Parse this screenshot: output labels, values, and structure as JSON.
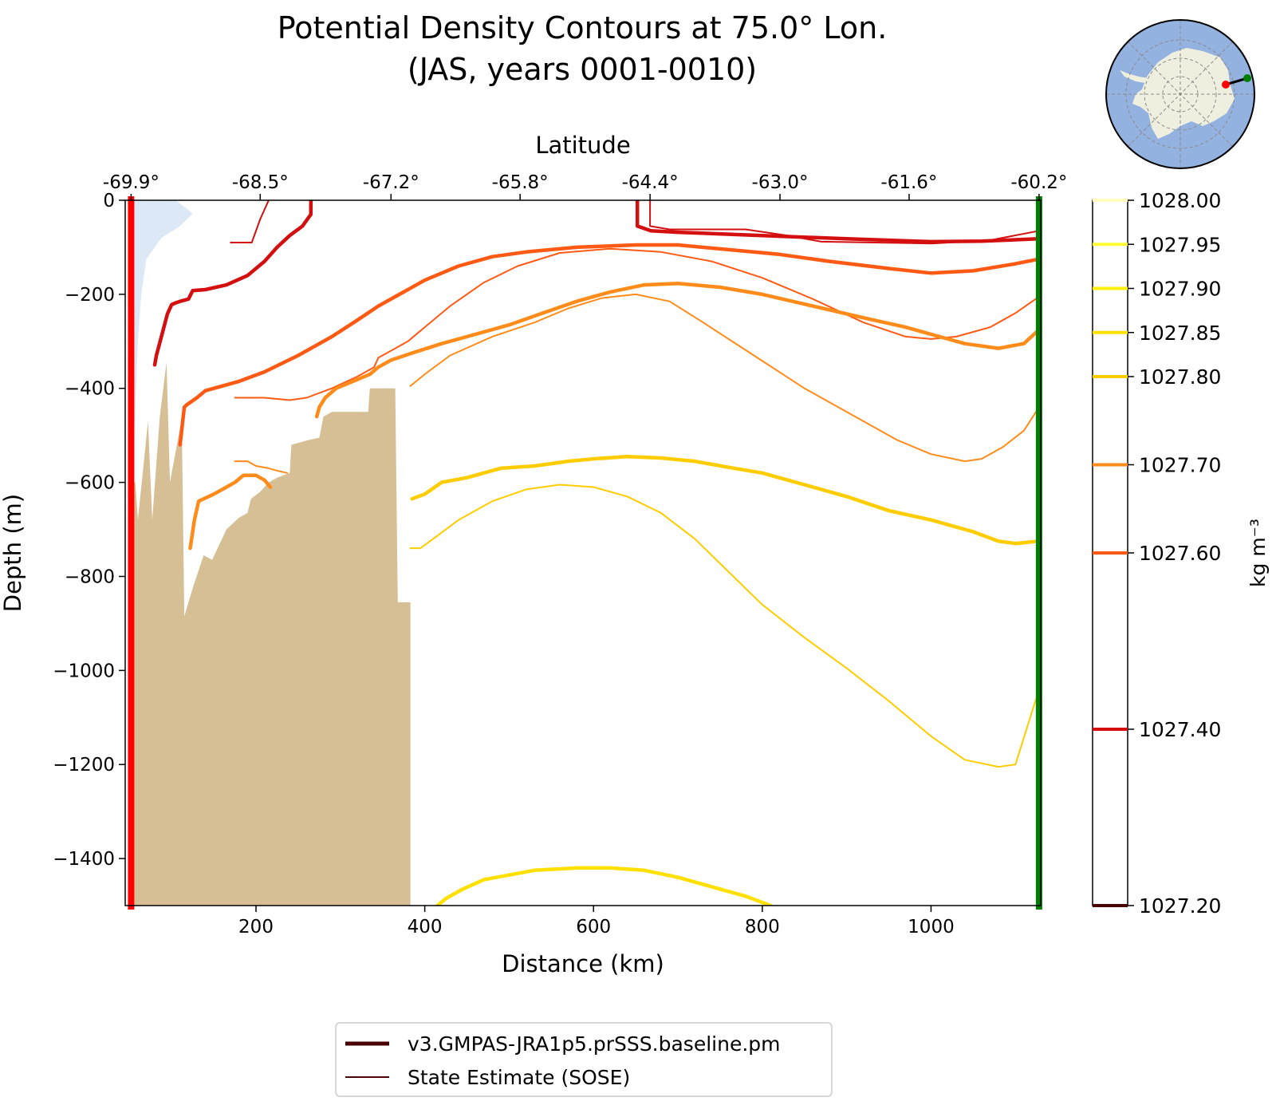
{
  "figure": {
    "title_line1": "Potential Density Contours at 75.0° Lon.",
    "title_line2": "(JAS, years 0001-0010)"
  },
  "chart_data": {
    "type": "line",
    "title": "Potential Density Contours at 75.0° Lon. (JAS, years 0001-0010)",
    "xlabel": "Distance (km)",
    "ylabel": "Depth (m)",
    "top_xlabel": "Latitude",
    "xlim": [
      45,
      1130
    ],
    "ylim": [
      -1500,
      0
    ],
    "x_ticks": [
      200,
      400,
      600,
      800,
      1000
    ],
    "y_ticks": [
      0,
      -200,
      -400,
      -600,
      -800,
      -1000,
      -1200,
      -1400
    ],
    "x_tick_labels": [
      "200",
      "400",
      "600",
      "800",
      "1000"
    ],
    "y_tick_labels": [
      "0",
      "−200",
      "−400",
      "−600",
      "−800",
      "−1000",
      "−1200",
      "−1400"
    ],
    "top_ticks": [
      {
        "x": 52,
        "label": "-69.9°"
      },
      {
        "x": 205,
        "label": "-68.5°"
      },
      {
        "x": 360,
        "label": "-67.2°"
      },
      {
        "x": 513,
        "label": "-65.8°"
      },
      {
        "x": 667,
        "label": "-64.4°"
      },
      {
        "x": 821,
        "label": "-63.0°"
      },
      {
        "x": 974,
        "label": "-61.6°"
      },
      {
        "x": 1128,
        "label": "-60.2°"
      }
    ],
    "section_start_x": 52,
    "section_end_x": 1128,
    "section_start_color": "#ff0000",
    "section_end_color": "#007f00",
    "ice_shelf_color": "#dce8f5",
    "bathymetry_color": "#d6bf94",
    "ice_shelf": [
      [
        58,
        0
      ],
      [
        105,
        0
      ],
      [
        125,
        -28
      ],
      [
        110,
        -55
      ],
      [
        88,
        -80
      ],
      [
        70,
        -125
      ],
      [
        64,
        -200
      ],
      [
        60,
        -300
      ],
      [
        58,
        -400
      ],
      [
        56,
        -500
      ],
      [
        55,
        -1500
      ],
      [
        50,
        -1500
      ],
      [
        50,
        0
      ]
    ],
    "bathymetry": [
      [
        52,
        -1500
      ],
      [
        52,
        -600
      ],
      [
        57,
        -600
      ],
      [
        60,
        -680
      ],
      [
        72,
        -470
      ],
      [
        77,
        -680
      ],
      [
        86,
        -460
      ],
      [
        94,
        -345
      ],
      [
        98,
        -600
      ],
      [
        112,
        -465
      ],
      [
        115,
        -885
      ],
      [
        125,
        -825
      ],
      [
        138,
        -755
      ],
      [
        148,
        -765
      ],
      [
        165,
        -700
      ],
      [
        180,
        -675
      ],
      [
        190,
        -665
      ],
      [
        194,
        -635
      ],
      [
        205,
        -620
      ],
      [
        215,
        -600
      ],
      [
        225,
        -590
      ],
      [
        240,
        -580
      ],
      [
        242,
        -520
      ],
      [
        262,
        -510
      ],
      [
        275,
        -505
      ],
      [
        280,
        -460
      ],
      [
        290,
        -450
      ],
      [
        310,
        -450
      ],
      [
        333,
        -450
      ],
      [
        335,
        -400
      ],
      [
        365,
        -400
      ],
      [
        368,
        -855
      ],
      [
        383,
        -855
      ],
      [
        383,
        -1500
      ]
    ],
    "colorbar": {
      "label": "kg m⁻³",
      "min": 1027.2,
      "max": 1028.0,
      "ticks": [
        {
          "value": 1028.0,
          "label": "1028.00",
          "color": "#ffffc0"
        },
        {
          "value": 1027.95,
          "label": "1027.95",
          "color": "#ffff33"
        },
        {
          "value": 1027.9,
          "label": "1027.90",
          "color": "#fff200"
        },
        {
          "value": 1027.85,
          "label": "1027.85",
          "color": "#ffe000"
        },
        {
          "value": 1027.8,
          "label": "1027.80",
          "color": "#ffcc00"
        },
        {
          "value": 1027.7,
          "label": "1027.70",
          "color": "#ff8c1a"
        },
        {
          "value": 1027.6,
          "label": "1027.60",
          "color": "#ff5a14"
        },
        {
          "value": 1027.4,
          "label": "1027.40",
          "color": "#d40f0f"
        },
        {
          "value": 1027.2,
          "label": "1027.20",
          "color": "#4a0000"
        }
      ]
    },
    "legend": {
      "placement": "bottom-center",
      "entries": [
        {
          "label": "v3.GMPAS-JRA1p5.prSSS.baseline.pm",
          "style": "thick",
          "color": "#4a0000"
        },
        {
          "label": "State Estimate (SOSE)",
          "style": "thin",
          "color": "#4a0000"
        }
      ]
    },
    "series": [
      {
        "density": 1027.4,
        "source": "model",
        "color": "#d40f0f",
        "width": 4.5,
        "points": [
          [
            265,
            0
          ],
          [
            265,
            -30
          ],
          [
            255,
            -55
          ],
          [
            240,
            -75
          ],
          [
            225,
            -100
          ],
          [
            210,
            -130
          ],
          [
            190,
            -160
          ],
          [
            165,
            -180
          ],
          [
            140,
            -190
          ],
          [
            125,
            -192
          ],
          [
            120,
            -210
          ],
          [
            110,
            -215
          ],
          [
            105,
            -218
          ],
          [
            100,
            -222
          ],
          [
            95,
            -242
          ],
          [
            82,
            -330
          ],
          [
            80,
            -350
          ]
        ]
      },
      {
        "density": 1027.4,
        "source": "model",
        "color": "#d40f0f",
        "width": 4.5,
        "points": [
          [
            652,
            0
          ],
          [
            652,
            -55
          ],
          [
            668,
            -65
          ],
          [
            700,
            -68
          ],
          [
            800,
            -75
          ],
          [
            900,
            -82
          ],
          [
            1000,
            -88
          ],
          [
            1060,
            -87
          ],
          [
            1128,
            -82
          ]
        ]
      },
      {
        "density": 1027.4,
        "source": "sose",
        "color": "#d40f0f",
        "width": 2,
        "points": [
          [
            215,
            0
          ],
          [
            205,
            -40
          ],
          [
            195,
            -90
          ],
          [
            170,
            -90
          ]
        ]
      },
      {
        "density": 1027.4,
        "source": "sose",
        "color": "#d40f0f",
        "width": 2,
        "points": [
          [
            667,
            0
          ],
          [
            667,
            -55
          ],
          [
            690,
            -62
          ],
          [
            720,
            -62
          ],
          [
            780,
            -62
          ],
          [
            830,
            -75
          ],
          [
            870,
            -88
          ],
          [
            1000,
            -92
          ],
          [
            1070,
            -85
          ],
          [
            1128,
            -65
          ]
        ]
      },
      {
        "density": 1027.6,
        "source": "model",
        "color": "#ff5a14",
        "width": 4.5,
        "points": [
          [
            110,
            -520
          ],
          [
            115,
            -440
          ],
          [
            118,
            -435
          ],
          [
            122,
            -430
          ],
          [
            130,
            -420
          ],
          [
            140,
            -405
          ],
          [
            160,
            -395
          ],
          [
            180,
            -385
          ],
          [
            210,
            -365
          ],
          [
            250,
            -330
          ],
          [
            290,
            -290
          ],
          [
            320,
            -255
          ],
          [
            345,
            -225
          ],
          [
            370,
            -200
          ],
          [
            400,
            -170
          ],
          [
            440,
            -140
          ],
          [
            480,
            -120
          ],
          [
            520,
            -110
          ],
          [
            580,
            -100
          ],
          [
            650,
            -95
          ],
          [
            700,
            -95
          ],
          [
            760,
            -105
          ],
          [
            820,
            -115
          ],
          [
            880,
            -130
          ],
          [
            950,
            -145
          ],
          [
            1000,
            -155
          ],
          [
            1050,
            -150
          ],
          [
            1100,
            -135
          ],
          [
            1128,
            -125
          ]
        ]
      },
      {
        "density": 1027.6,
        "source": "sose",
        "color": "#ff5a14",
        "width": 2,
        "points": [
          [
            175,
            -420
          ],
          [
            210,
            -420
          ],
          [
            240,
            -425
          ],
          [
            260,
            -420
          ],
          [
            290,
            -400
          ],
          [
            320,
            -375
          ],
          [
            340,
            -355
          ],
          [
            345,
            -335
          ],
          [
            360,
            -320
          ],
          [
            380,
            -300
          ],
          [
            400,
            -270
          ],
          [
            430,
            -225
          ],
          [
            470,
            -175
          ],
          [
            510,
            -140
          ],
          [
            560,
            -112
          ],
          [
            620,
            -103
          ],
          [
            680,
            -110
          ],
          [
            740,
            -130
          ],
          [
            800,
            -165
          ],
          [
            860,
            -210
          ],
          [
            920,
            -260
          ],
          [
            970,
            -290
          ],
          [
            1000,
            -295
          ],
          [
            1030,
            -290
          ],
          [
            1070,
            -270
          ],
          [
            1100,
            -240
          ],
          [
            1128,
            -205
          ]
        ]
      },
      {
        "density": 1027.7,
        "source": "model",
        "color": "#ff8c1a",
        "width": 4.5,
        "points": [
          [
            272,
            -460
          ],
          [
            275,
            -440
          ],
          [
            282,
            -420
          ],
          [
            295,
            -400
          ],
          [
            315,
            -385
          ],
          [
            335,
            -370
          ],
          [
            345,
            -355
          ],
          [
            360,
            -340
          ],
          [
            385,
            -325
          ],
          [
            420,
            -305
          ],
          [
            460,
            -285
          ],
          [
            500,
            -265
          ],
          [
            540,
            -240
          ],
          [
            580,
            -215
          ],
          [
            620,
            -195
          ],
          [
            660,
            -180
          ],
          [
            700,
            -177
          ],
          [
            750,
            -185
          ],
          [
            800,
            -200
          ],
          [
            860,
            -225
          ],
          [
            920,
            -250
          ],
          [
            970,
            -270
          ],
          [
            1000,
            -285
          ],
          [
            1040,
            -305
          ],
          [
            1080,
            -315
          ],
          [
            1110,
            -305
          ],
          [
            1128,
            -275
          ]
        ]
      },
      {
        "density": 1027.7,
        "source": "model",
        "color": "#ff8c1a",
        "width": 4.5,
        "points": [
          [
            122,
            -740
          ],
          [
            127,
            -680
          ],
          [
            132,
            -640
          ],
          [
            150,
            -625
          ],
          [
            165,
            -610
          ],
          [
            175,
            -600
          ],
          [
            185,
            -585
          ],
          [
            200,
            -585
          ],
          [
            210,
            -595
          ],
          [
            217,
            -610
          ]
        ]
      },
      {
        "density": 1027.7,
        "source": "sose",
        "color": "#ff8c1a",
        "width": 2,
        "points": [
          [
            175,
            -555
          ],
          [
            190,
            -555
          ],
          [
            200,
            -565
          ],
          [
            215,
            -570
          ],
          [
            225,
            -575
          ],
          [
            237,
            -580
          ]
        ]
      },
      {
        "density": 1027.7,
        "source": "sose",
        "color": "#ff8c1a",
        "width": 2,
        "points": [
          [
            383,
            -395
          ],
          [
            400,
            -370
          ],
          [
            430,
            -330
          ],
          [
            480,
            -290
          ],
          [
            530,
            -260
          ],
          [
            570,
            -230
          ],
          [
            610,
            -208
          ],
          [
            650,
            -200
          ],
          [
            690,
            -215
          ],
          [
            730,
            -260
          ],
          [
            790,
            -330
          ],
          [
            850,
            -400
          ],
          [
            910,
            -460
          ],
          [
            960,
            -510
          ],
          [
            1000,
            -540
          ],
          [
            1040,
            -555
          ],
          [
            1060,
            -550
          ],
          [
            1085,
            -525
          ],
          [
            1110,
            -490
          ],
          [
            1128,
            -440
          ]
        ]
      },
      {
        "density": 1027.8,
        "source": "model",
        "color": "#ffcc00",
        "width": 4.5,
        "points": [
          [
            385,
            -635
          ],
          [
            400,
            -625
          ],
          [
            420,
            -600
          ],
          [
            450,
            -590
          ],
          [
            490,
            -570
          ],
          [
            530,
            -565
          ],
          [
            570,
            -555
          ],
          [
            600,
            -550
          ],
          [
            640,
            -545
          ],
          [
            680,
            -548
          ],
          [
            720,
            -555
          ],
          [
            760,
            -568
          ],
          [
            800,
            -580
          ],
          [
            850,
            -605
          ],
          [
            900,
            -630
          ],
          [
            950,
            -660
          ],
          [
            1000,
            -680
          ],
          [
            1050,
            -705
          ],
          [
            1080,
            -725
          ],
          [
            1100,
            -730
          ],
          [
            1128,
            -725
          ]
        ]
      },
      {
        "density": 1027.8,
        "source": "sose",
        "color": "#ffcc00",
        "width": 2,
        "points": [
          [
            383,
            -740
          ],
          [
            395,
            -740
          ],
          [
            410,
            -720
          ],
          [
            440,
            -680
          ],
          [
            480,
            -640
          ],
          [
            520,
            -615
          ],
          [
            560,
            -605
          ],
          [
            600,
            -610
          ],
          [
            640,
            -630
          ],
          [
            680,
            -665
          ],
          [
            720,
            -720
          ],
          [
            760,
            -790
          ],
          [
            800,
            -860
          ],
          [
            850,
            -930
          ],
          [
            900,
            -995
          ],
          [
            950,
            -1065
          ],
          [
            1000,
            -1140
          ],
          [
            1040,
            -1190
          ],
          [
            1080,
            -1205
          ],
          [
            1100,
            -1200
          ],
          [
            1128,
            -1040
          ]
        ]
      },
      {
        "density": 1027.85,
        "source": "model",
        "color": "#ffe000",
        "width": 4.5,
        "points": [
          [
            415,
            -1500
          ],
          [
            425,
            -1485
          ],
          [
            445,
            -1465
          ],
          [
            470,
            -1445
          ],
          [
            500,
            -1435
          ],
          [
            530,
            -1425
          ],
          [
            580,
            -1420
          ],
          [
            620,
            -1420
          ],
          [
            660,
            -1425
          ],
          [
            700,
            -1440
          ],
          [
            740,
            -1460
          ],
          [
            780,
            -1480
          ],
          [
            810,
            -1500
          ]
        ]
      }
    ]
  },
  "inset_map": {
    "ocean_color": "#94b2df",
    "land_color": "#efefdf",
    "line_start_color": "#ff0000",
    "line_end_color": "#007f00"
  }
}
